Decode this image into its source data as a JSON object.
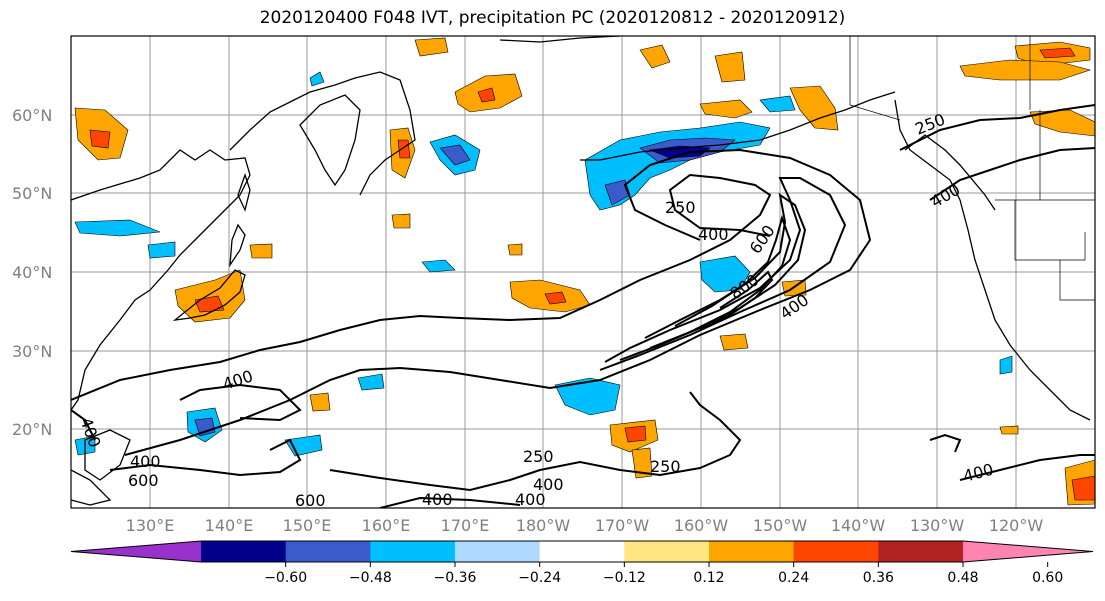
{
  "title": "2020120400 F048 IVT, precipitation PC (2020120812 - 2020120912)",
  "lat_labels": [
    "60°N",
    "50°N",
    "40°N",
    "30°N",
    "20°N"
  ],
  "lon_labels": [
    "130°E",
    "140°E",
    "150°E",
    "160°E",
    "170°E",
    "180°W",
    "170°W",
    "160°W",
    "150°W",
    "140°W",
    "130°W",
    "120°W"
  ],
  "contour_labels": [
    "250",
    "400",
    "600",
    "800",
    "400",
    "400",
    "400",
    "400",
    "600",
    "600",
    "250",
    "400",
    "400",
    "400",
    "250",
    "250",
    "400",
    "400"
  ],
  "colorbar": {
    "colors": [
      "#9932cc",
      "#00008b",
      "#3a5bcc",
      "#00bfff",
      "#add8ff",
      "#ffffff",
      "#ffe680",
      "#ffa500",
      "#ff4500",
      "#b22222",
      "#ff85b0"
    ],
    "ticks": [
      "−0.60",
      "−0.48",
      "−0.36",
      "−0.24",
      "−0.12",
      "0.12",
      "0.24",
      "0.36",
      "0.48",
      "0.60"
    ]
  }
}
